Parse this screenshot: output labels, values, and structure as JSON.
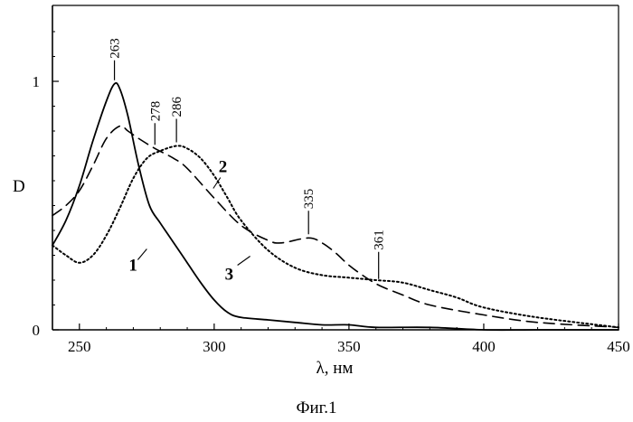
{
  "chart_data": {
    "type": "line",
    "caption": "Фиг.1",
    "xlabel": "λ, нм",
    "ylabel": "D",
    "xlim": [
      240,
      450
    ],
    "ylim": [
      0,
      1.3
    ],
    "x_ticks": [
      250,
      300,
      350,
      400,
      450
    ],
    "y_ticks": [
      0,
      1
    ],
    "grid": false,
    "series": [
      {
        "name": "1",
        "style": "solid",
        "x": [
          240,
          245,
          250,
          255,
          260,
          263,
          265,
          268,
          272,
          276,
          280,
          285,
          290,
          295,
          300,
          305,
          310,
          320,
          330,
          340,
          350,
          360,
          380,
          400,
          420,
          450
        ],
        "y": [
          0.34,
          0.44,
          0.58,
          0.76,
          0.92,
          0.99,
          0.97,
          0.86,
          0.66,
          0.5,
          0.43,
          0.35,
          0.27,
          0.19,
          0.12,
          0.07,
          0.05,
          0.04,
          0.03,
          0.02,
          0.02,
          0.01,
          0.01,
          0.0,
          0.0,
          0.0
        ]
      },
      {
        "name": "2",
        "style": "dotted",
        "x": [
          240,
          245,
          250,
          255,
          260,
          265,
          270,
          275,
          280,
          286,
          290,
          295,
          300,
          305,
          310,
          320,
          330,
          340,
          350,
          360,
          370,
          380,
          390,
          400,
          420,
          450
        ],
        "y": [
          0.34,
          0.3,
          0.27,
          0.3,
          0.38,
          0.49,
          0.61,
          0.69,
          0.72,
          0.74,
          0.73,
          0.69,
          0.62,
          0.53,
          0.44,
          0.32,
          0.25,
          0.22,
          0.21,
          0.2,
          0.19,
          0.16,
          0.13,
          0.09,
          0.05,
          0.01
        ]
      },
      {
        "name": "3",
        "style": "dashed",
        "x": [
          240,
          245,
          250,
          255,
          260,
          265,
          268,
          272,
          278,
          285,
          290,
          300,
          310,
          320,
          325,
          335,
          340,
          345,
          350,
          355,
          361,
          370,
          380,
          400,
          420,
          450
        ],
        "y": [
          0.46,
          0.5,
          0.56,
          0.66,
          0.77,
          0.82,
          0.8,
          0.77,
          0.73,
          0.69,
          0.65,
          0.53,
          0.42,
          0.36,
          0.35,
          0.37,
          0.35,
          0.31,
          0.26,
          0.22,
          0.18,
          0.14,
          0.1,
          0.06,
          0.03,
          0.01
        ]
      }
    ],
    "peak_annotations": [
      {
        "text": "263",
        "x": 263,
        "y": 0.99
      },
      {
        "text": "278",
        "x": 278,
        "y": 0.73
      },
      {
        "text": "286",
        "x": 286,
        "y": 0.74
      },
      {
        "text": "335",
        "x": 335,
        "y": 0.37
      },
      {
        "text": "361",
        "x": 361,
        "y": 0.19
      }
    ],
    "curve_labels": [
      {
        "text": "1",
        "x": 273,
        "y": 0.26
      },
      {
        "text": "2",
        "x": 303,
        "y": 0.62
      },
      {
        "text": "3",
        "x": 312,
        "y": 0.26
      }
    ]
  }
}
